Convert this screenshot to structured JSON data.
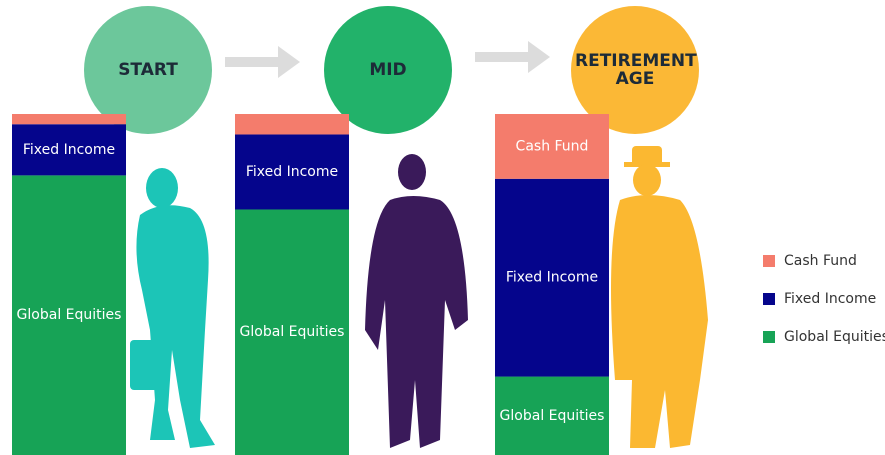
{
  "chart_data": {
    "type": "bar",
    "stacked": true,
    "categories": [
      "START",
      "MID",
      "RETIREMENT AGE"
    ],
    "series": [
      {
        "name": "Cash Fund",
        "color": "#f47c6c",
        "values": [
          3,
          6,
          19
        ]
      },
      {
        "name": "Fixed Income",
        "color": "#05058c",
        "values": [
          15,
          22,
          58
        ]
      },
      {
        "name": "Global Equities",
        "color": "#17a356",
        "values": [
          82,
          72,
          23
        ]
      }
    ],
    "ylim": [
      0,
      100
    ],
    "stage_colors": [
      "#6cc79b",
      "#22b26a",
      "#fbb836"
    ]
  }
}
